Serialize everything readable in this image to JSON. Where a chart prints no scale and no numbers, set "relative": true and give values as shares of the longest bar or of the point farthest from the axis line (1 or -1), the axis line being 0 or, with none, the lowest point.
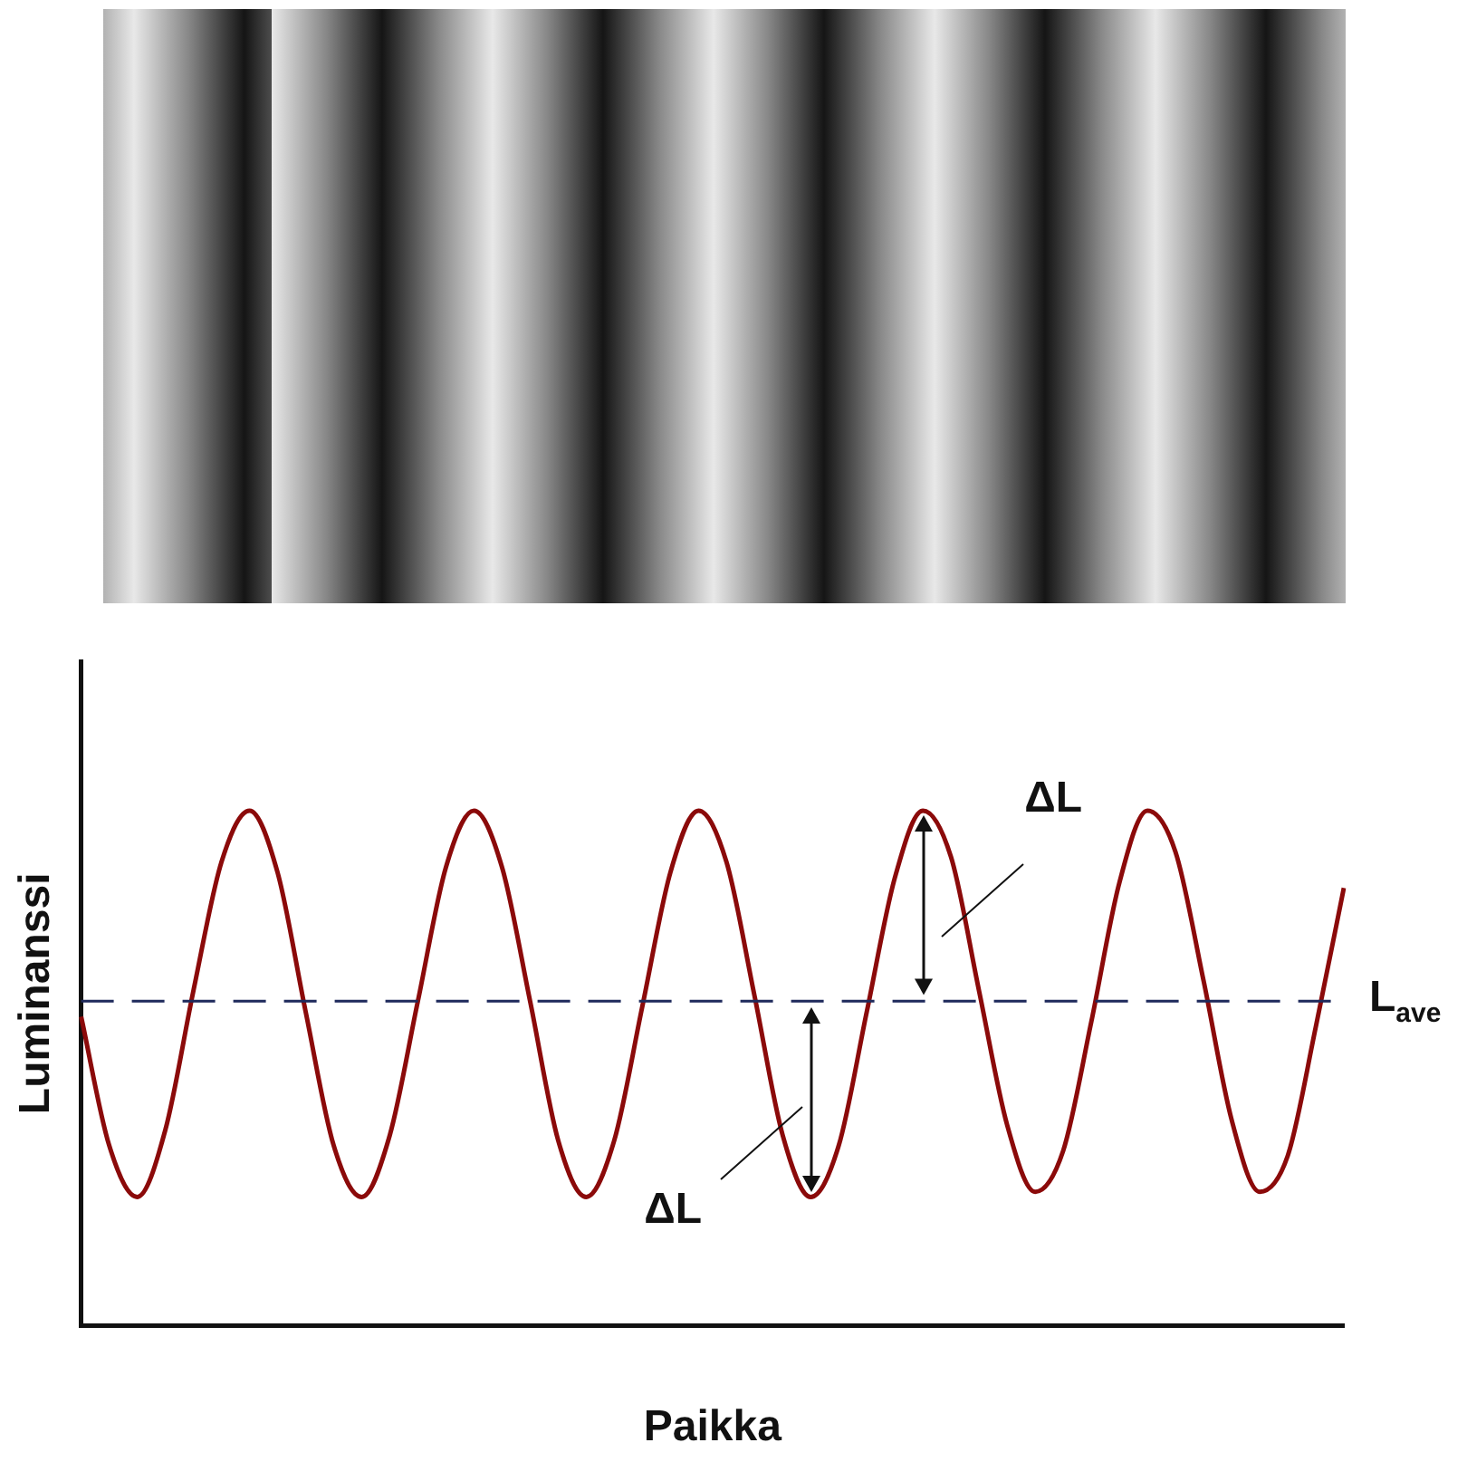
{
  "chart_data": {
    "type": "line",
    "relative": true,
    "xlabel": "Paikka",
    "ylabel": "Luminanssi",
    "categories": [
      null,
      null,
      null,
      null,
      null,
      null,
      null,
      null,
      null,
      null,
      null,
      null,
      null,
      null,
      null,
      null,
      null,
      null,
      null,
      null,
      null,
      null,
      null,
      null,
      null,
      null,
      null,
      null,
      null,
      null,
      null,
      null,
      null,
      null,
      null,
      null,
      null,
      null,
      null,
      null,
      null,
      null,
      null,
      null,
      null,
      null
    ],
    "series": [
      {
        "color": "#8b0a0a",
        "values": [
          0.6,
          0.35,
          0.25,
          0.38,
          0.65,
          0.9,
          1,
          0.88,
          0.61,
          0.35,
          0.25,
          0.37,
          0.63,
          0.89,
          1,
          0.89,
          0.63,
          0.36,
          0.25,
          0.36,
          0.62,
          0.88,
          1,
          0.9,
          0.64,
          0.37,
          0.25,
          0.35,
          0.61,
          0.87,
          1,
          0.91,
          0.65,
          0.39,
          0.26,
          0.34,
          0.59,
          0.86,
          1,
          0.92,
          0.67,
          0.4,
          0.26,
          0.33,
          0.58,
          0.85
        ]
      }
    ],
    "ref_lines": [
      {
        "axis": "y",
        "value": 0.63,
        "label": "L$_{ave}$",
        "color": "#1f2a5c",
        "line_style": "dashed"
      }
    ],
    "annotations": [
      "ΔL",
      "ΔL"
    ],
    "grid": false,
    "legend": false,
    "marker": "none",
    "line_style": "solid"
  }
}
